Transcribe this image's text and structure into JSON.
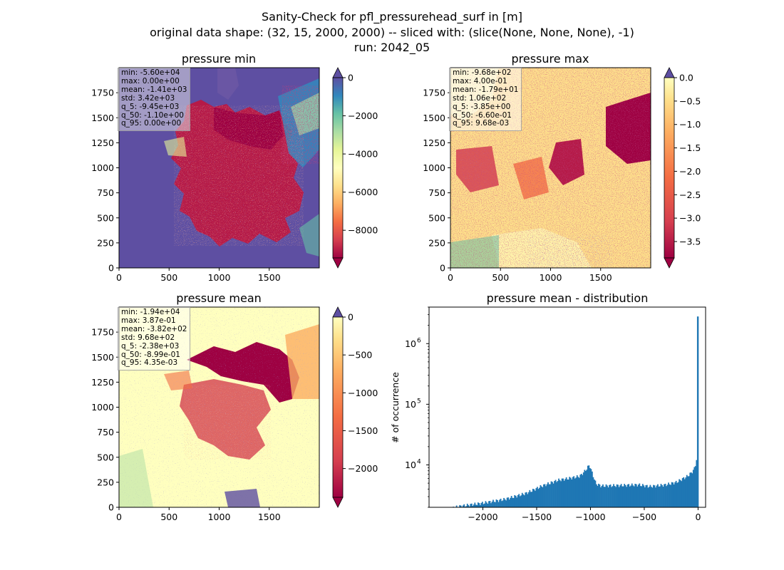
{
  "figure": {
    "suptitle": [
      "Sanity-Check for pfl_pressurehead_surf in [m]",
      "original data shape: (32, 15, 2000, 2000) -- sliced with: (slice(None, None, None), -1)",
      "run: 2042_05"
    ]
  },
  "chart_data": [
    {
      "type": "heatmap",
      "title": "pressure min",
      "x_ticks": [
        0,
        500,
        1000,
        1500
      ],
      "y_ticks": [
        0,
        250,
        500,
        750,
        1000,
        1250,
        1500,
        1750
      ],
      "xlim": [
        0,
        2000
      ],
      "ylim": [
        0,
        2000
      ],
      "colormap": "Spectral",
      "colorbar": {
        "ticks": [
          0,
          -2000,
          -4000,
          -6000,
          -8000
        ],
        "range": [
          -9450,
          0
        ],
        "extend": "both",
        "top_extension_color": "#5e4fa2",
        "bottom_extension_color": "#9e0142"
      },
      "stats": [
        "min: -5.60e+04",
        "max: 0.00e+00",
        "mean: -1.41e+03",
        "std: 3.42e+03",
        "q_5: -9.45e+03",
        "q_50: -1.10e+00",
        "q_95: 0.00e+00"
      ]
    },
    {
      "type": "heatmap",
      "title": "pressure max",
      "x_ticks": [
        0,
        500,
        1000,
        1500
      ],
      "y_ticks": [
        0,
        250,
        500,
        750,
        1000,
        1250,
        1500,
        1750
      ],
      "xlim": [
        0,
        2000
      ],
      "ylim": [
        0,
        2000
      ],
      "colormap": "Spectral",
      "colorbar": {
        "ticks": [
          "0.0",
          "−0.5",
          "−1.0",
          "−1.5",
          "−2.0",
          "−2.5",
          "−3.0",
          "−3.5"
        ],
        "range": [
          -3.85,
          0
        ],
        "extend": "both",
        "top_extension_color": "#5e4fa2",
        "bottom_extension_color": "#9e0142"
      },
      "stats": [
        "min: -9.68e+02",
        "max: 4.00e-01",
        "mean: -1.79e+01",
        "std: 1.06e+02",
        "q_5: -3.85e+00",
        "q_50: -6.60e-01",
        "q_95: 9.68e-03"
      ]
    },
    {
      "type": "heatmap",
      "title": "pressure mean",
      "x_ticks": [
        0,
        500,
        1000,
        1500
      ],
      "y_ticks": [
        0,
        250,
        500,
        750,
        1000,
        1250,
        1500,
        1750
      ],
      "xlim": [
        0,
        2000
      ],
      "ylim": [
        0,
        2000
      ],
      "colormap": "Spectral",
      "colorbar": {
        "ticks": [
          0,
          -500,
          -1000,
          -1500,
          -2000
        ],
        "range": [
          -2380,
          0
        ],
        "extend": "both",
        "top_extension_color": "#5e4fa2",
        "bottom_extension_color": "#9e0142"
      },
      "stats": [
        "min: -1.94e+04",
        "max: 3.87e-01",
        "mean: -3.82e+02",
        "std: 9.68e+02",
        "q_5: -2.38e+03",
        "q_50: -8.99e-01",
        "q_95: 4.35e-03"
      ]
    },
    {
      "type": "bar",
      "title": "pressure mean - distribution",
      "ylabel": "# of occurrence",
      "yscale": "log",
      "ylim": [
        2000,
        4000000
      ],
      "xlim": [
        -2500,
        70
      ],
      "x_ticks": [
        "−2000",
        "−1500",
        "−1000",
        "−500",
        "0"
      ],
      "x_tick_values": [
        -2000,
        -1500,
        -1000,
        -500,
        0
      ],
      "y_ticks": [
        {
          "base": "10",
          "exp": "4",
          "value": 10000
        },
        {
          "base": "10",
          "exp": "5",
          "value": 100000
        },
        {
          "base": "10",
          "exp": "6",
          "value": 1000000
        }
      ],
      "bar_color": "#1f77b4",
      "bin_width": 10,
      "knots": [
        [
          -2380,
          1800
        ],
        [
          -2200,
          2100
        ],
        [
          -2000,
          2350
        ],
        [
          -1800,
          2700
        ],
        [
          -1600,
          3400
        ],
        [
          -1450,
          4500
        ],
        [
          -1300,
          5600
        ],
        [
          -1200,
          6000
        ],
        [
          -1100,
          6500
        ],
        [
          -1050,
          8000
        ],
        [
          -1010,
          10000
        ],
        [
          -980,
          7000
        ],
        [
          -950,
          4900
        ],
        [
          -900,
          4500
        ],
        [
          -700,
          4600
        ],
        [
          -550,
          4700
        ],
        [
          -450,
          4400
        ],
        [
          -300,
          4700
        ],
        [
          -200,
          5200
        ],
        [
          -100,
          6500
        ],
        [
          -60,
          7500
        ],
        [
          -30,
          9000
        ],
        [
          -20,
          11000
        ],
        [
          -10,
          14000
        ],
        [
          -5,
          20000
        ],
        [
          0,
          2800000
        ]
      ]
    }
  ]
}
